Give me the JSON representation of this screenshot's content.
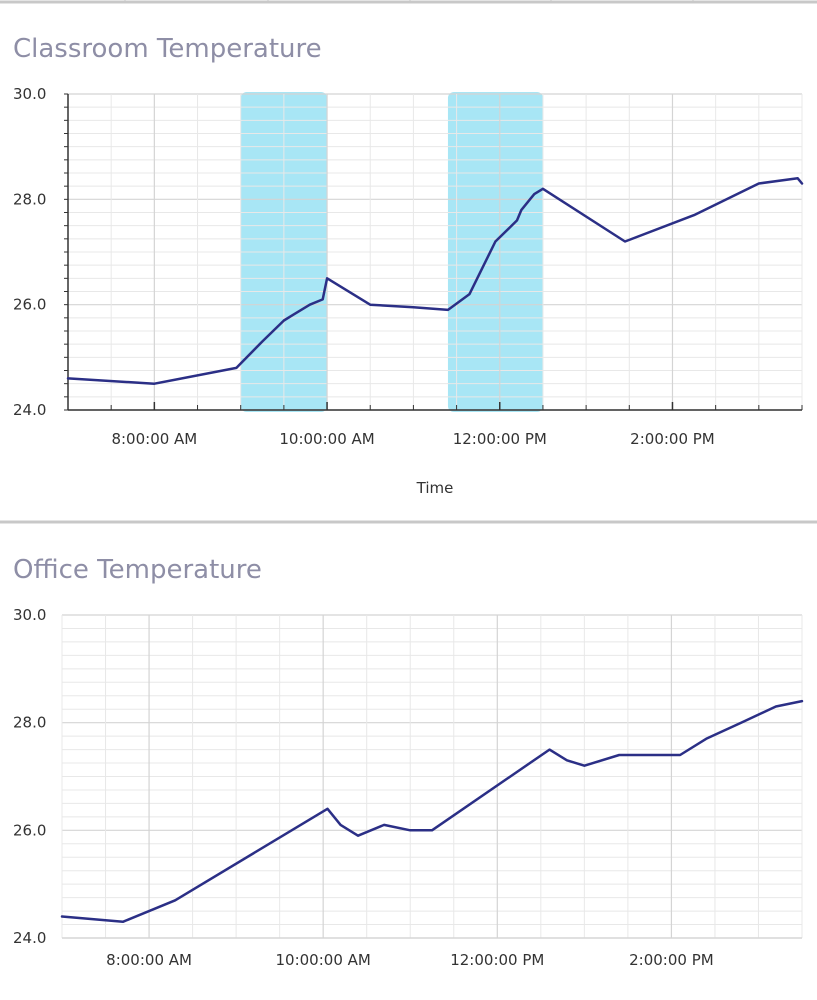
{
  "colors": {
    "line": "#2b2f86",
    "grid_major": "#d4d4d4",
    "grid_minor": "#e8e8e8",
    "highlight": "#a8e6f5",
    "axis": "#333333",
    "divider": "#c8c8c8",
    "title": "#8e8ea6"
  },
  "chart_data": [
    {
      "type": "line",
      "title": "Classroom Temperature",
      "xlabel": "Time",
      "ylabel": "",
      "x_unit": "hour",
      "xlim": [
        7.0,
        15.5
      ],
      "ylim": [
        24.0,
        30.0
      ],
      "y_ticks": [
        "24.0",
        "26.0",
        "28.0",
        "30.0"
      ],
      "x_ticks": [
        {
          "x": 8,
          "label": "8:00:00 AM"
        },
        {
          "x": 10,
          "label": "10:00:00 AM"
        },
        {
          "x": 12,
          "label": "12:00:00 PM"
        },
        {
          "x": 14,
          "label": "2:00:00 PM"
        }
      ],
      "grid": true,
      "highlight_bands": [
        {
          "x_start": 9.0,
          "x_end": 10.0
        },
        {
          "x_start": 11.4,
          "x_end": 12.5
        }
      ],
      "series": [
        {
          "x": [
            7.0,
            8.0,
            8.95,
            9.25,
            9.5,
            9.6,
            9.8,
            9.95,
            10.0,
            10.5,
            11.0,
            11.4,
            11.65,
            11.95,
            12.2,
            12.25,
            12.35,
            12.4,
            12.5,
            13.45,
            14.25,
            15.0,
            15.45,
            15.5
          ],
          "y": [
            24.6,
            24.5,
            24.8,
            25.3,
            25.7,
            25.8,
            26.0,
            26.1,
            26.5,
            26.0,
            25.95,
            25.9,
            26.2,
            27.2,
            27.6,
            27.8,
            28.0,
            28.1,
            28.2,
            27.2,
            27.7,
            28.3,
            28.4,
            28.3
          ]
        }
      ]
    },
    {
      "type": "line",
      "title": "Office Temperature",
      "xlabel": "",
      "ylabel": "",
      "x_unit": "hour",
      "xlim": [
        7.0,
        15.5
      ],
      "ylim": [
        24.0,
        30.0
      ],
      "y_ticks": [
        "24.0",
        "26.0",
        "28.0",
        "30.0"
      ],
      "x_ticks": [
        {
          "x": 8,
          "label": "8:00:00 AM"
        },
        {
          "x": 10,
          "label": "10:00:00 AM"
        },
        {
          "x": 12,
          "label": "12:00:00 PM"
        },
        {
          "x": 14,
          "label": "2:00:00 PM"
        }
      ],
      "grid": true,
      "series": [
        {
          "x": [
            7.0,
            7.7,
            8.3,
            10.05,
            10.2,
            10.4,
            10.7,
            11.0,
            11.25,
            12.6,
            12.8,
            13.0,
            13.4,
            14.1,
            14.4,
            14.8,
            15.2,
            15.5
          ],
          "y": [
            24.4,
            24.3,
            24.7,
            26.4,
            26.1,
            25.9,
            26.1,
            26.0,
            26.0,
            27.5,
            27.3,
            27.2,
            27.4,
            27.4,
            27.7,
            28.0,
            28.3,
            28.4
          ]
        }
      ]
    }
  ]
}
